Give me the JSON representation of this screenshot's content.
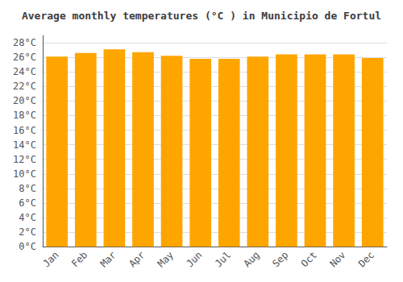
{
  "chart_data": {
    "type": "bar",
    "title": "Average monthly temperatures (°C ) in Municipio de Fortul",
    "categories": [
      "Jan",
      "Feb",
      "Mar",
      "Apr",
      "May",
      "Jun",
      "Jul",
      "Aug",
      "Sep",
      "Oct",
      "Nov",
      "Dec"
    ],
    "values": [
      26.1,
      26.6,
      27.1,
      26.7,
      26.2,
      25.8,
      25.8,
      26.1,
      26.4,
      26.4,
      26.4,
      25.9
    ],
    "color": "#FFA500",
    "ylim": [
      0,
      29
    ],
    "yticks": [
      {
        "value": 0,
        "label": "0°C"
      },
      {
        "value": 2,
        "label": "2°C"
      },
      {
        "value": 4,
        "label": "4°C"
      },
      {
        "value": 6,
        "label": "6°C"
      },
      {
        "value": 8,
        "label": "8°C"
      },
      {
        "value": 10,
        "label": "10°C"
      },
      {
        "value": 12,
        "label": "12°C"
      },
      {
        "value": 14,
        "label": "14°C"
      },
      {
        "value": 16,
        "label": "16°C"
      },
      {
        "value": 18,
        "label": "18°C"
      },
      {
        "value": 20,
        "label": "20°C"
      },
      {
        "value": 22,
        "label": "22°C"
      },
      {
        "value": 24,
        "label": "24°C"
      },
      {
        "value": 26,
        "label": "26°C"
      },
      {
        "value": 28,
        "label": "28°C"
      }
    ],
    "grid": true
  }
}
